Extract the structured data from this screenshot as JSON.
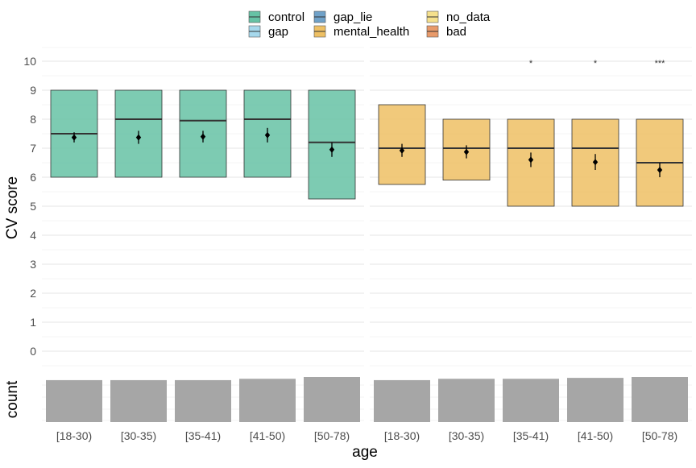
{
  "chart_data": {
    "type": "boxplot",
    "ylabel": "CV score",
    "ylabel_count": "count",
    "xlabel": "age",
    "ylim": [
      0,
      10
    ],
    "yticks": [
      "0",
      "1",
      "2",
      "3",
      "4",
      "5",
      "6",
      "7",
      "8",
      "9",
      "10"
    ],
    "categories": [
      "[18-30)",
      "[30-35)",
      "[35-41)",
      "[41-50)",
      "[50-78)"
    ],
    "legend": {
      "position": "top",
      "entries": [
        {
          "name": "control",
          "color": "#66c2a5"
        },
        {
          "name": "gap",
          "color": "#a6d8ec"
        },
        {
          "name": "gap_lie",
          "color": "#6fa1c8"
        },
        {
          "name": "mental_health",
          "color": "#eec064"
        },
        {
          "name": "no_data",
          "color": "#f5e08c"
        },
        {
          "name": "bad",
          "color": "#e89a6a"
        }
      ]
    },
    "panels": [
      {
        "group": "control",
        "color": "#66c2a5",
        "boxes": [
          {
            "q1": 6,
            "median": 7.5,
            "q3": 9,
            "mean": 7.37,
            "ci": [
              7.2,
              7.55
            ],
            "sig": ""
          },
          {
            "q1": 6,
            "median": 8,
            "q3": 9,
            "mean": 7.37,
            "ci": [
              7.15,
              7.6
            ],
            "sig": ""
          },
          {
            "q1": 6,
            "median": 7.95,
            "q3": 9,
            "mean": 7.4,
            "ci": [
              7.2,
              7.6
            ],
            "sig": ""
          },
          {
            "q1": 6,
            "median": 8,
            "q3": 9,
            "mean": 7.45,
            "ci": [
              7.2,
              7.7
            ],
            "sig": ""
          },
          {
            "q1": 5.25,
            "median": 7.2,
            "q3": 9,
            "mean": 6.95,
            "ci": [
              6.7,
              7.2
            ],
            "sig": ""
          }
        ],
        "counts": [
          0.93,
          0.93,
          0.93,
          0.96,
          1.0
        ]
      },
      {
        "group": "mental_health",
        "color": "#eec064",
        "boxes": [
          {
            "q1": 5.75,
            "median": 7,
            "q3": 8.5,
            "mean": 6.92,
            "ci": [
              6.7,
              7.15
            ],
            "sig": ""
          },
          {
            "q1": 5.9,
            "median": 7,
            "q3": 8,
            "mean": 6.87,
            "ci": [
              6.65,
              7.1
            ],
            "sig": ""
          },
          {
            "q1": 5,
            "median": 7,
            "q3": 8,
            "mean": 6.6,
            "ci": [
              6.35,
              6.85
            ],
            "sig": "*"
          },
          {
            "q1": 5,
            "median": 7,
            "q3": 8,
            "mean": 6.52,
            "ci": [
              6.25,
              6.8
            ],
            "sig": "*"
          },
          {
            "q1": 5,
            "median": 6.5,
            "q3": 8,
            "mean": 6.25,
            "ci": [
              6.0,
              6.5
            ],
            "sig": "***"
          }
        ],
        "counts": [
          0.93,
          0.96,
          0.96,
          0.98,
          1.0
        ]
      }
    ]
  }
}
